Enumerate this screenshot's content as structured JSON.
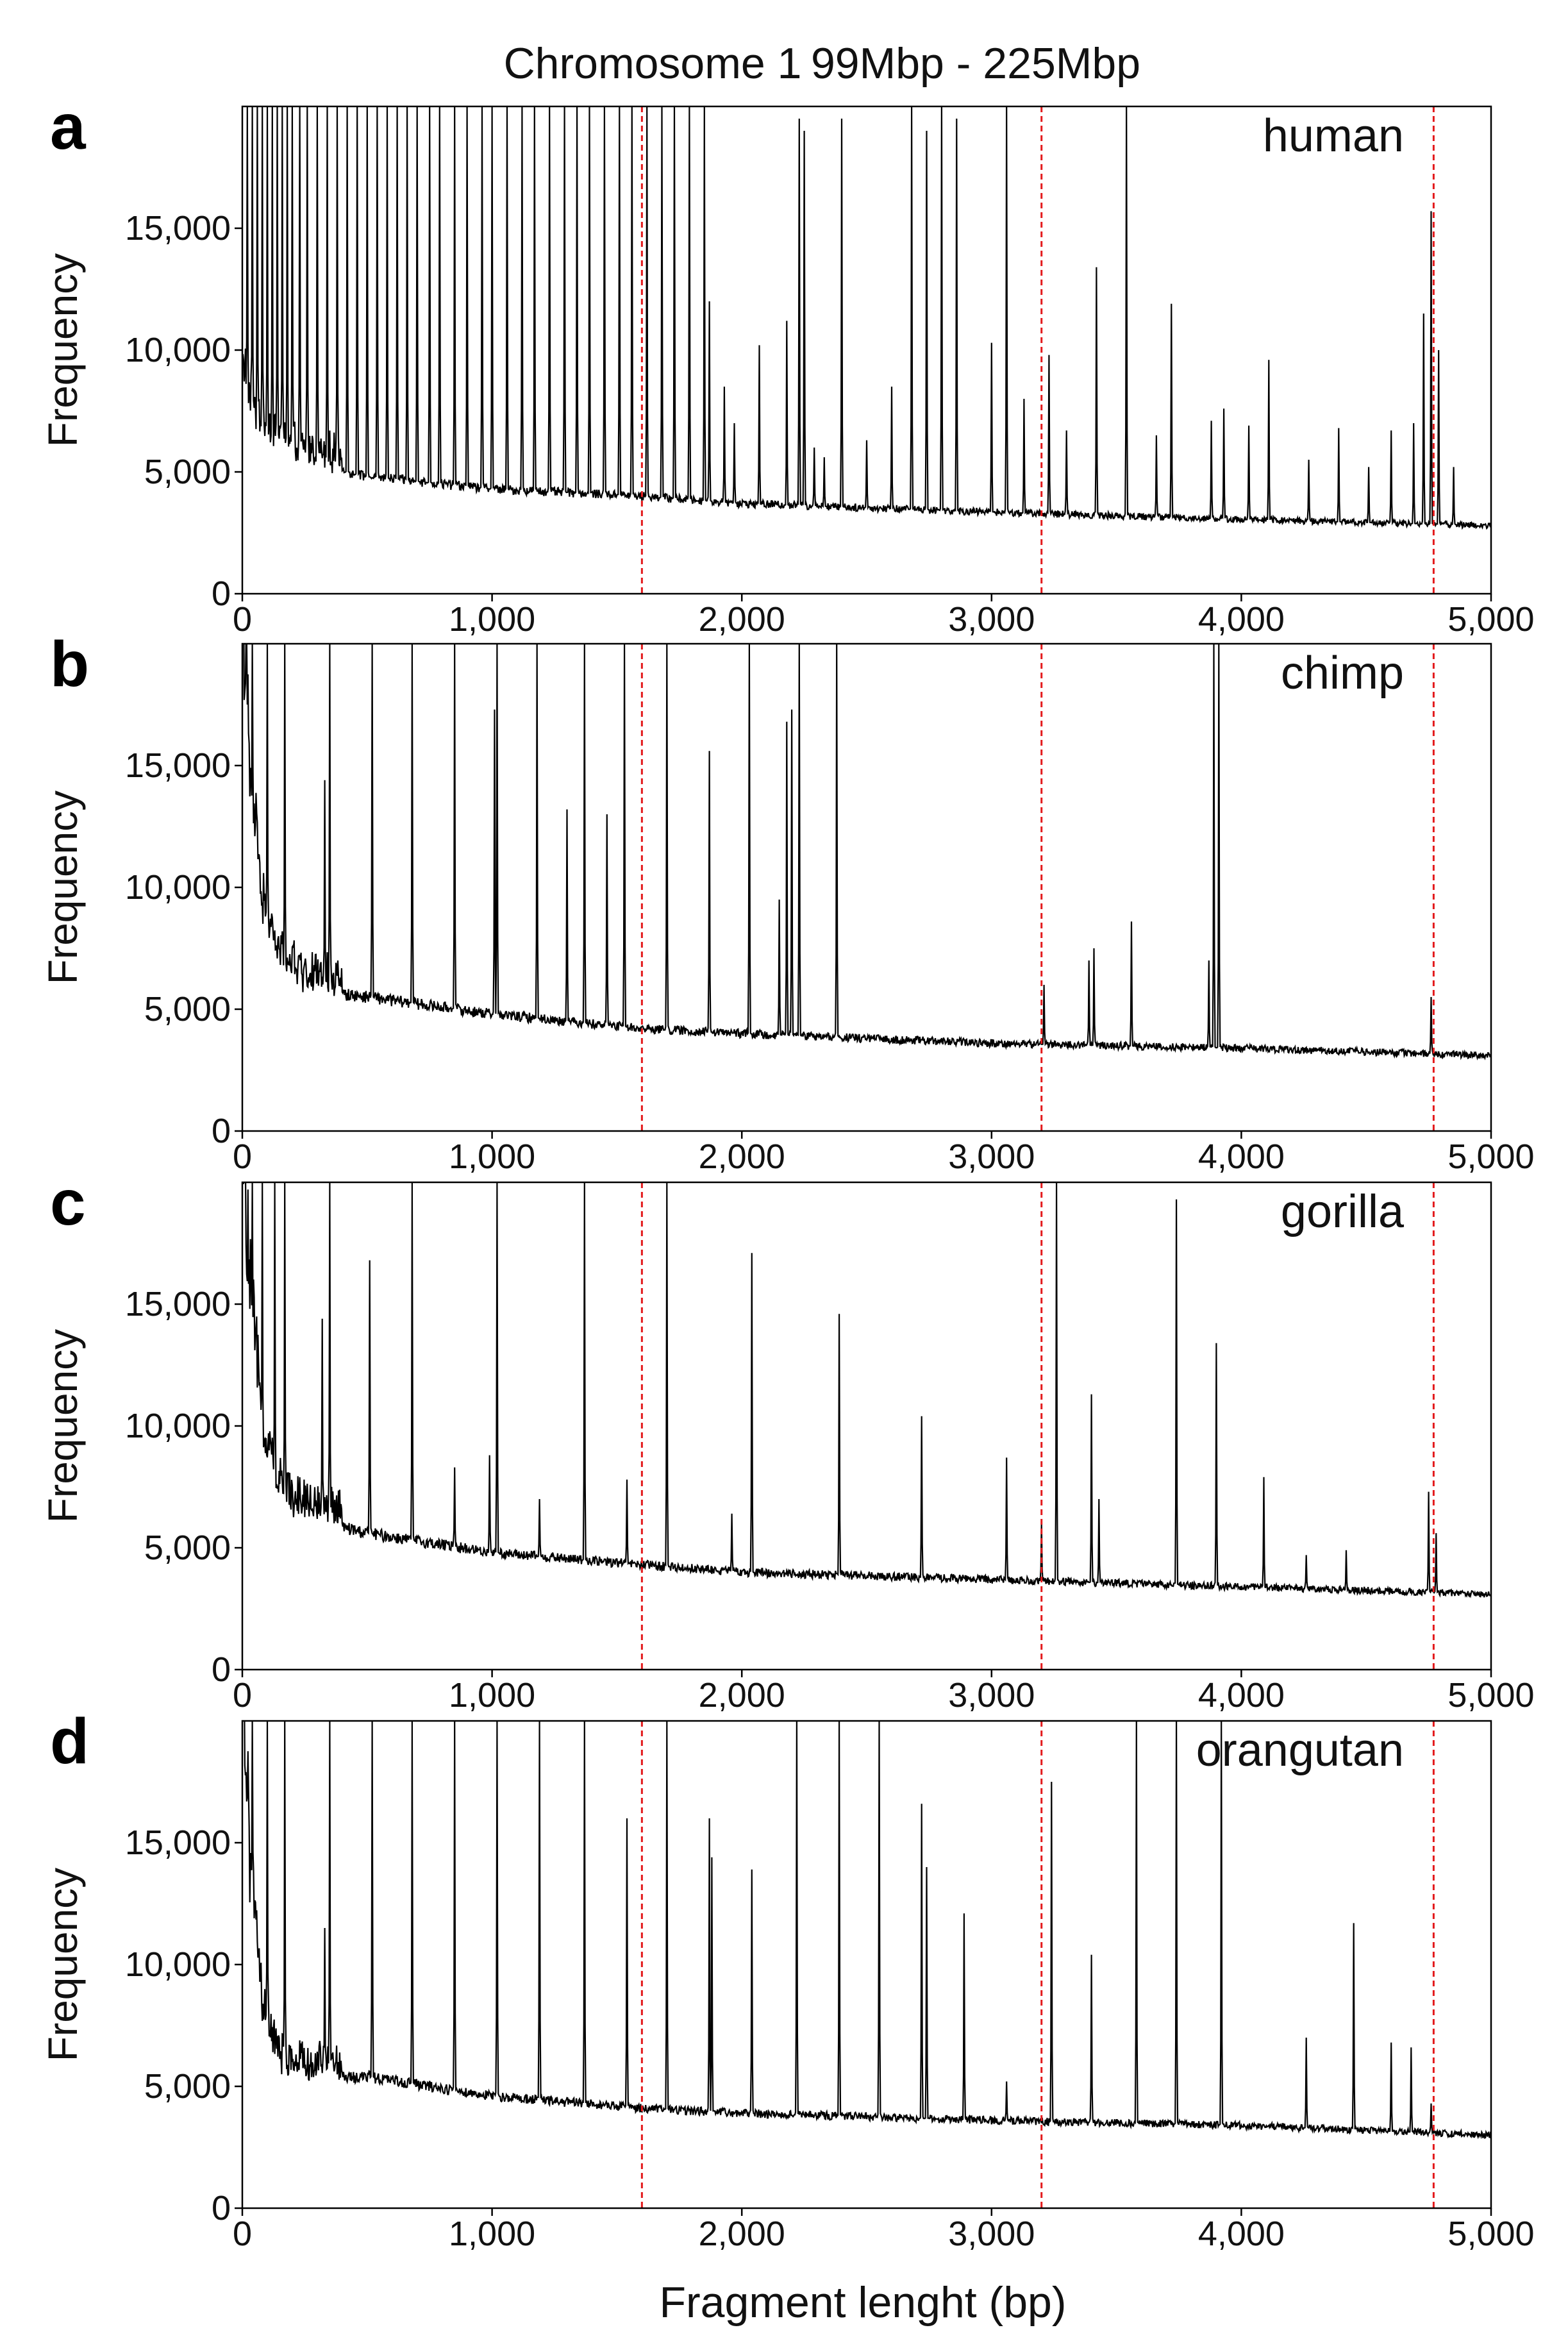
{
  "figure": {
    "title_left": "Chromosome 1",
    "title_right": "99Mbp - 225Mbp",
    "xlabel": "Fragment lenght (bp)",
    "ylabel": "Frequency"
  },
  "chart_data": [
    {
      "type": "line",
      "panel": "a",
      "label": "human",
      "xlim": [
        0,
        5000
      ],
      "ylim": [
        0,
        20000
      ],
      "yticks": [
        0,
        5000,
        10000,
        15000
      ],
      "ytick_labels": [
        "0",
        "5,000",
        "10,000",
        "15,000"
      ],
      "xticks": [
        0,
        1000,
        2000,
        3000,
        4000,
        5000
      ],
      "xtick_labels": [
        "0",
        "1,000",
        "2,000",
        "3,000",
        "4,000",
        "5,000"
      ],
      "reference_lines_x": [
        1600,
        3200,
        4770
      ],
      "reference_line_color": "#e31a1c",
      "series_color": "#000000",
      "baseline": [
        [
          0,
          9000
        ],
        [
          30,
          7200
        ],
        [
          80,
          6300
        ],
        [
          200,
          5500
        ],
        [
          500,
          4800
        ],
        [
          1000,
          4300
        ],
        [
          1600,
          4000
        ],
        [
          2000,
          3700
        ],
        [
          3000,
          3350
        ],
        [
          4000,
          3050
        ],
        [
          5000,
          2800
        ]
      ],
      "peaks": [
        [
          20,
          20000
        ],
        [
          40,
          20000
        ],
        [
          60,
          20000
        ],
        [
          80,
          20000
        ],
        [
          100,
          20000
        ],
        [
          120,
          20000
        ],
        [
          140,
          20000
        ],
        [
          160,
          20000
        ],
        [
          180,
          20000
        ],
        [
          200,
          20000
        ],
        [
          230,
          20000
        ],
        [
          260,
          20000
        ],
        [
          300,
          20000
        ],
        [
          340,
          20000
        ],
        [
          380,
          20000
        ],
        [
          420,
          20000
        ],
        [
          460,
          20000
        ],
        [
          500,
          20000
        ],
        [
          540,
          20000
        ],
        [
          580,
          20000
        ],
        [
          620,
          20000
        ],
        [
          660,
          20000
        ],
        [
          700,
          20000
        ],
        [
          750,
          20000
        ],
        [
          790,
          20000
        ],
        [
          850,
          20000
        ],
        [
          900,
          20000
        ],
        [
          960,
          20000
        ],
        [
          1000,
          20000
        ],
        [
          1060,
          20000
        ],
        [
          1120,
          20000
        ],
        [
          1170,
          20000
        ],
        [
          1230,
          20000
        ],
        [
          1290,
          20000
        ],
        [
          1340,
          20000
        ],
        [
          1390,
          20000
        ],
        [
          1450,
          20000
        ],
        [
          1510,
          20000
        ],
        [
          1560,
          20000
        ],
        [
          1620,
          20000
        ],
        [
          1680,
          20000
        ],
        [
          1730,
          20000
        ],
        [
          1790,
          20000
        ],
        [
          1850,
          20000
        ],
        [
          1870,
          12000
        ],
        [
          1930,
          8500
        ],
        [
          1970,
          7000
        ],
        [
          2070,
          10200
        ],
        [
          2180,
          11200
        ],
        [
          2230,
          19500
        ],
        [
          2250,
          19000
        ],
        [
          2290,
          6000
        ],
        [
          2330,
          5600
        ],
        [
          2400,
          19500
        ],
        [
          2500,
          6300
        ],
        [
          2600,
          8500
        ],
        [
          2680,
          20000
        ],
        [
          2740,
          19000
        ],
        [
          2800,
          20000
        ],
        [
          2860,
          19500
        ],
        [
          3000,
          10300
        ],
        [
          3060,
          20000
        ],
        [
          3130,
          8000
        ],
        [
          3230,
          9800
        ],
        [
          3300,
          6700
        ],
        [
          3420,
          13400
        ],
        [
          3540,
          20000
        ],
        [
          3660,
          6500
        ],
        [
          3720,
          11900
        ],
        [
          3880,
          7100
        ],
        [
          3930,
          7600
        ],
        [
          4030,
          6900
        ],
        [
          4110,
          9600
        ],
        [
          4270,
          5500
        ],
        [
          4390,
          6800
        ],
        [
          4510,
          5200
        ],
        [
          4600,
          6700
        ],
        [
          4690,
          7000
        ],
        [
          4730,
          11500
        ],
        [
          4760,
          15700
        ],
        [
          4790,
          10000
        ],
        [
          4850,
          5200
        ]
      ]
    },
    {
      "type": "line",
      "panel": "b",
      "label": "chimp",
      "xlim": [
        0,
        5000
      ],
      "ylim": [
        0,
        20000
      ],
      "yticks": [
        0,
        5000,
        10000,
        15000
      ],
      "ytick_labels": [
        "0",
        "5,000",
        "10,000",
        "15,000"
      ],
      "xticks": [
        0,
        1000,
        2000,
        3000,
        4000,
        5000
      ],
      "xtick_labels": [
        "0",
        "1,000",
        "2,000",
        "3,000",
        "4,000",
        "5,000"
      ],
      "reference_lines_x": [
        1600,
        3200,
        4770
      ],
      "reference_line_color": "#e31a1c",
      "series_color": "#000000",
      "baseline": [
        [
          0,
          20000
        ],
        [
          30,
          13000
        ],
        [
          80,
          8500
        ],
        [
          150,
          6500
        ],
        [
          250,
          5800
        ],
        [
          500,
          5500
        ],
        [
          1000,
          4800
        ],
        [
          1600,
          4200
        ],
        [
          2000,
          4000
        ],
        [
          3000,
          3600
        ],
        [
          4000,
          3400
        ],
        [
          5000,
          3100
        ]
      ],
      "peaks": [
        [
          40,
          20000
        ],
        [
          100,
          20000
        ],
        [
          170,
          20000
        ],
        [
          330,
          14400
        ],
        [
          350,
          20000
        ],
        [
          520,
          20000
        ],
        [
          680,
          20000
        ],
        [
          850,
          20000
        ],
        [
          1010,
          17300
        ],
        [
          1020,
          20000
        ],
        [
          1180,
          20000
        ],
        [
          1300,
          13200
        ],
        [
          1370,
          20000
        ],
        [
          1460,
          13000
        ],
        [
          1530,
          20000
        ],
        [
          1700,
          20000
        ],
        [
          1870,
          15600
        ],
        [
          2030,
          20000
        ],
        [
          2150,
          9500
        ],
        [
          2180,
          16800
        ],
        [
          2200,
          17300
        ],
        [
          2230,
          20000
        ],
        [
          2380,
          20000
        ],
        [
          3210,
          6000
        ],
        [
          3390,
          7000
        ],
        [
          3410,
          7500
        ],
        [
          3560,
          8600
        ],
        [
          3870,
          7000
        ],
        [
          3890,
          20000
        ],
        [
          3910,
          20000
        ],
        [
          4760,
          5500
        ]
      ]
    },
    {
      "type": "line",
      "panel": "c",
      "label": "gorilla",
      "xlim": [
        0,
        5000
      ],
      "ylim": [
        0,
        20000
      ],
      "yticks": [
        0,
        5000,
        10000,
        15000
      ],
      "ytick_labels": [
        "0",
        "5,000",
        "10,000",
        "15,000"
      ],
      "xticks": [
        0,
        1000,
        2000,
        3000,
        4000,
        5000
      ],
      "xtick_labels": [
        "0",
        "1,000",
        "2,000",
        "3,000",
        "4,000",
        "5,000"
      ],
      "reference_lines_x": [
        1600,
        3200,
        4770
      ],
      "reference_line_color": "#e31a1c",
      "series_color": "#000000",
      "baseline": [
        [
          0,
          20000
        ],
        [
          30,
          14000
        ],
        [
          80,
          9000
        ],
        [
          150,
          6800
        ],
        [
          250,
          6200
        ],
        [
          500,
          5600
        ],
        [
          1000,
          4800
        ],
        [
          1600,
          4300
        ],
        [
          2000,
          4000
        ],
        [
          3000,
          3700
        ],
        [
          4000,
          3400
        ],
        [
          5000,
          3100
        ]
      ],
      "peaks": [
        [
          40,
          20000
        ],
        [
          80,
          20000
        ],
        [
          130,
          20000
        ],
        [
          170,
          20000
        ],
        [
          320,
          14400
        ],
        [
          350,
          20000
        ],
        [
          510,
          16800
        ],
        [
          680,
          20000
        ],
        [
          850,
          8300
        ],
        [
          990,
          8800
        ],
        [
          1020,
          20000
        ],
        [
          1190,
          7000
        ],
        [
          1370,
          20000
        ],
        [
          1540,
          7800
        ],
        [
          1700,
          20000
        ],
        [
          1960,
          6400
        ],
        [
          2040,
          17100
        ],
        [
          2390,
          14600
        ],
        [
          2720,
          10400
        ],
        [
          3060,
          8700
        ],
        [
          3200,
          6000
        ],
        [
          3260,
          20000
        ],
        [
          3400,
          11300
        ],
        [
          3430,
          7000
        ],
        [
          3740,
          19300
        ],
        [
          3900,
          13400
        ],
        [
          4090,
          7900
        ],
        [
          4260,
          4700
        ],
        [
          4420,
          4900
        ],
        [
          4750,
          7300
        ],
        [
          4780,
          5600
        ]
      ]
    },
    {
      "type": "line",
      "panel": "d",
      "label": "orangutan",
      "xlim": [
        0,
        5000
      ],
      "ylim": [
        0,
        20000
      ],
      "yticks": [
        0,
        5000,
        10000,
        15000
      ],
      "ytick_labels": [
        "0",
        "5,000",
        "10,000",
        "15,000"
      ],
      "xticks": [
        0,
        1000,
        2000,
        3000,
        4000,
        5000
      ],
      "xtick_labels": [
        "0",
        "1,000",
        "2,000",
        "3,000",
        "4,000",
        "5,000"
      ],
      "reference_lines_x": [
        1600,
        3200,
        4770
      ],
      "reference_line_color": "#e31a1c",
      "series_color": "#000000",
      "baseline": [
        [
          0,
          20000
        ],
        [
          30,
          13000
        ],
        [
          80,
          7500
        ],
        [
          150,
          5600
        ],
        [
          250,
          5300
        ],
        [
          500,
          5400
        ],
        [
          1000,
          4600
        ],
        [
          1600,
          4100
        ],
        [
          2000,
          3900
        ],
        [
          3000,
          3600
        ],
        [
          4000,
          3400
        ],
        [
          5000,
          3000
        ]
      ],
      "peaks": [
        [
          40,
          20000
        ],
        [
          100,
          20000
        ],
        [
          170,
          20000
        ],
        [
          330,
          11500
        ],
        [
          350,
          20000
        ],
        [
          520,
          20000
        ],
        [
          680,
          20000
        ],
        [
          850,
          20000
        ],
        [
          1020,
          20000
        ],
        [
          1190,
          20000
        ],
        [
          1370,
          20000
        ],
        [
          1540,
          16000
        ],
        [
          1700,
          20000
        ],
        [
          1870,
          16000
        ],
        [
          1880,
          14400
        ],
        [
          2040,
          13900
        ],
        [
          2220,
          20000
        ],
        [
          2390,
          20000
        ],
        [
          2550,
          20000
        ],
        [
          2720,
          16600
        ],
        [
          2740,
          14000
        ],
        [
          2890,
          12100
        ],
        [
          3060,
          5200
        ],
        [
          3240,
          17500
        ],
        [
          3400,
          10400
        ],
        [
          3580,
          20000
        ],
        [
          3740,
          20000
        ],
        [
          3920,
          20000
        ],
        [
          4260,
          7000
        ],
        [
          4450,
          11700
        ],
        [
          4600,
          6800
        ],
        [
          4680,
          6600
        ],
        [
          4760,
          4300
        ]
      ]
    }
  ]
}
